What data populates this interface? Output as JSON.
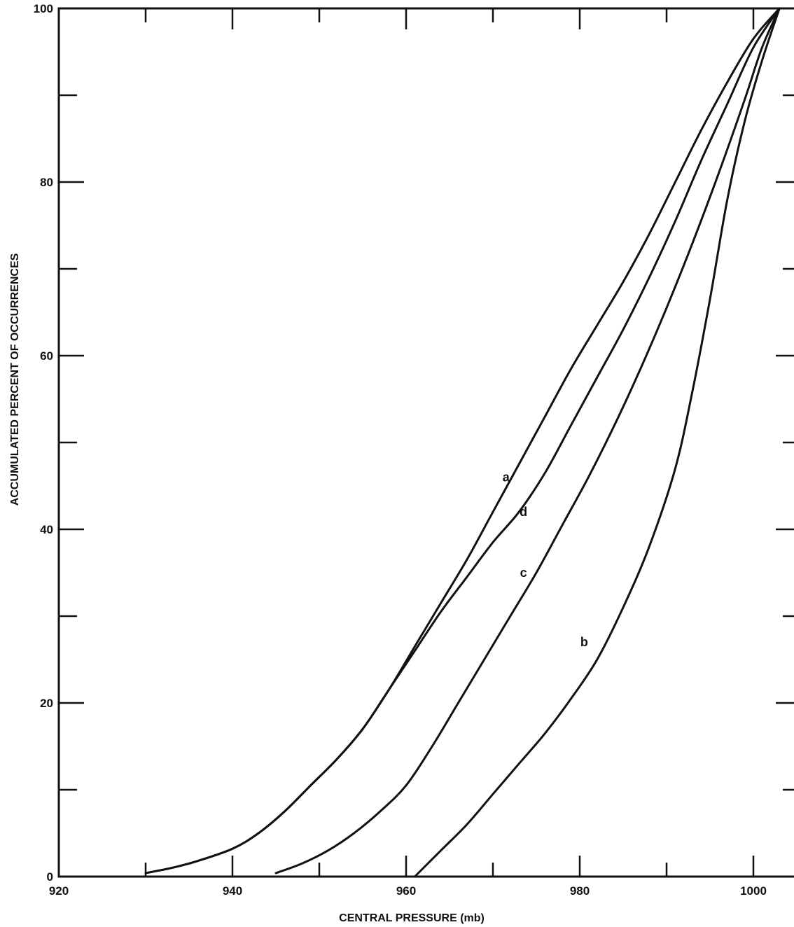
{
  "chart_data": {
    "type": "line",
    "title": "",
    "xlabel": "CENTRAL PRESSURE (mb)",
    "ylabel": "ACCUMULATED PERCENT OF OCCURRENCES",
    "xlim": [
      920,
      1004
    ],
    "ylim": [
      0,
      100
    ],
    "x_ticks": [
      920,
      940,
      960,
      980,
      1000
    ],
    "y_ticks": [
      0,
      20,
      40,
      60,
      80,
      100
    ],
    "x_tick_step_minor": 10,
    "y_tick_step_minor": 10,
    "grid": false,
    "series": [
      {
        "name": "a",
        "label_pos": [
          972,
          46
        ],
        "points": [
          [
            930,
            0.4
          ],
          [
            933,
            1.0
          ],
          [
            936,
            1.8
          ],
          [
            940,
            3.2
          ],
          [
            943,
            5.0
          ],
          [
            946,
            7.5
          ],
          [
            949,
            10.5
          ],
          [
            952,
            13.5
          ],
          [
            955,
            17.0
          ],
          [
            958,
            21.5
          ],
          [
            961,
            26.5
          ],
          [
            964,
            31.5
          ],
          [
            967,
            36.5
          ],
          [
            970,
            42.0
          ],
          [
            973,
            47.5
          ],
          [
            976,
            53.0
          ],
          [
            979,
            58.5
          ],
          [
            982,
            63.5
          ],
          [
            985,
            68.5
          ],
          [
            988,
            74.0
          ],
          [
            991,
            80.0
          ],
          [
            994,
            86.0
          ],
          [
            997,
            91.5
          ],
          [
            1000,
            96.5
          ],
          [
            1003,
            100
          ]
        ]
      },
      {
        "name": "d",
        "label_pos": [
          974,
          42
        ],
        "points": [
          [
            930,
            0.4
          ],
          [
            933,
            1.0
          ],
          [
            936,
            1.8
          ],
          [
            940,
            3.2
          ],
          [
            943,
            5.0
          ],
          [
            946,
            7.5
          ],
          [
            949,
            10.5
          ],
          [
            952,
            13.5
          ],
          [
            955,
            17.0
          ],
          [
            958,
            21.5
          ],
          [
            961,
            26.0
          ],
          [
            964,
            30.5
          ],
          [
            967,
            34.5
          ],
          [
            970,
            38.5
          ],
          [
            973,
            42.0
          ],
          [
            976,
            46.5
          ],
          [
            979,
            52.0
          ],
          [
            982,
            57.5
          ],
          [
            985,
            63.0
          ],
          [
            988,
            69.0
          ],
          [
            991,
            75.5
          ],
          [
            994,
            82.5
          ],
          [
            997,
            89.0
          ],
          [
            1000,
            95.5
          ],
          [
            1003,
            100
          ]
        ]
      },
      {
        "name": "c",
        "label_pos": [
          974,
          35
        ],
        "points": [
          [
            945,
            0.4
          ],
          [
            948,
            1.5
          ],
          [
            951,
            3.0
          ],
          [
            954,
            5.0
          ],
          [
            957,
            7.5
          ],
          [
            960,
            10.5
          ],
          [
            963,
            15.0
          ],
          [
            966,
            20.0
          ],
          [
            969,
            25.0
          ],
          [
            972,
            30.0
          ],
          [
            975,
            35.0
          ],
          [
            978,
            40.5
          ],
          [
            981,
            46.0
          ],
          [
            984,
            52.0
          ],
          [
            987,
            58.5
          ],
          [
            990,
            65.5
          ],
          [
            993,
            73.0
          ],
          [
            996,
            81.0
          ],
          [
            999,
            89.5
          ],
          [
            1001,
            95.5
          ],
          [
            1003,
            100
          ]
        ]
      },
      {
        "name": "b",
        "label_pos": [
          981,
          27
        ],
        "points": [
          [
            961,
            0
          ],
          [
            964,
            3.0
          ],
          [
            967,
            6.0
          ],
          [
            970,
            9.5
          ],
          [
            973,
            13.0
          ],
          [
            976,
            16.5
          ],
          [
            979,
            20.5
          ],
          [
            982,
            25.0
          ],
          [
            985,
            31.0
          ],
          [
            988,
            38.0
          ],
          [
            991,
            47.0
          ],
          [
            993,
            56.0
          ],
          [
            995,
            66.5
          ],
          [
            997,
            78.0
          ],
          [
            999,
            87.0
          ],
          [
            1001,
            94.0
          ],
          [
            1003,
            100
          ]
        ]
      }
    ]
  }
}
